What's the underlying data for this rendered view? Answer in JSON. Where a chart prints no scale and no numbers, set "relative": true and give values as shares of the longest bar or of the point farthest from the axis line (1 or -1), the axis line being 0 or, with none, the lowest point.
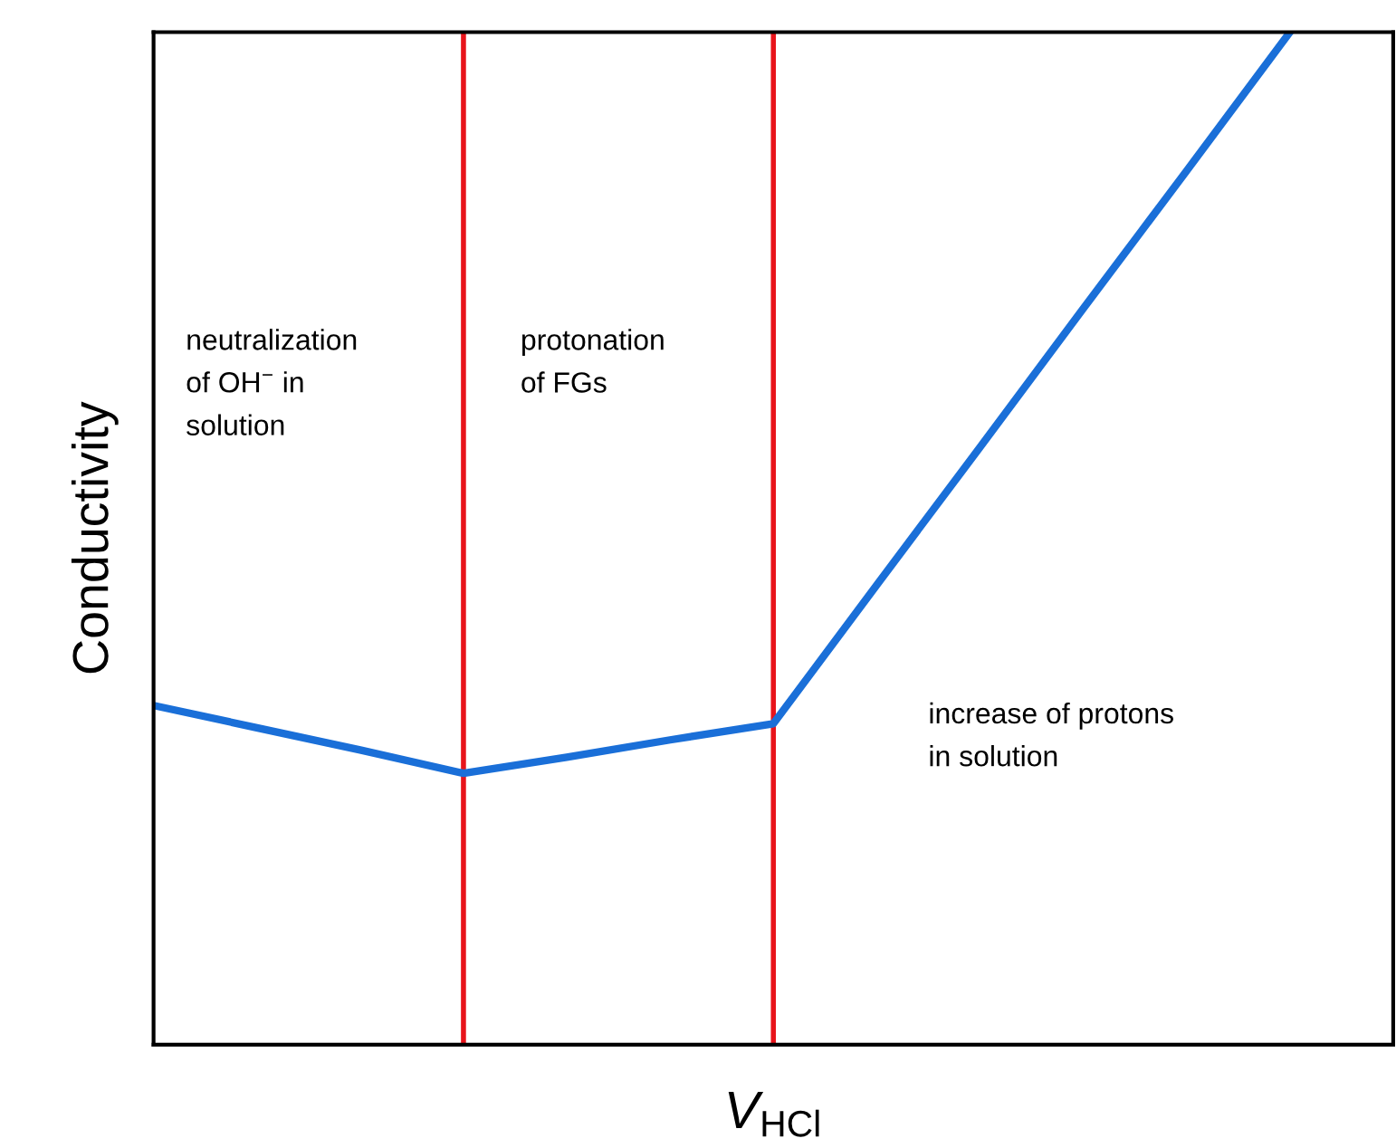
{
  "chart_data": {
    "type": "line",
    "relative": true,
    "xlabel": "V$_{HCl}$",
    "ylabel": "Conductivity",
    "categories": [
      null,
      null,
      null,
      null,
      null,
      null,
      null,
      null,
      null,
      null,
      null,
      null
    ],
    "tick_labels": false,
    "series": [
      {
        "color": "#1a6fd8",
        "values": [
          0.335,
          0.313,
          0.291,
          0.268,
          0.284,
          0.301,
          0.317,
          0.454,
          0.59,
          0.727,
          0.863,
          1
        ]
      }
    ],
    "annotations": [
      "neutralization\nof OH$^{−}$ in\nsolution",
      "protonation\nof FGs",
      "increase of protons\nin solution"
    ]
  }
}
